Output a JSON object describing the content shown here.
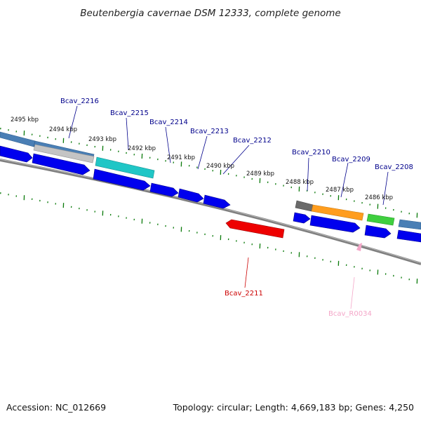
{
  "title": "Beutenbergia cavernae DSM 12333, complete genome",
  "footer": {
    "accession": "Accession: NC_012669",
    "summary": "Topology: circular; Length: 4,669,183 bp; Genes: 4,250"
  },
  "ruler_labels": [
    "2495 kbp",
    "2494 kbp",
    "2493 kbp",
    "2492 kbp",
    "2491 kbp",
    "2490 kbp",
    "2489 kbp",
    "2488 kbp",
    "2487 kbp",
    "2486 kbp"
  ],
  "gene_labels": {
    "top": [
      "Bcav_2216",
      "Bcav_2215",
      "Bcav_2214",
      "Bcav_2213",
      "Bcav_2212",
      "Bcav_2210",
      "Bcav_2209",
      "Bcav_2208"
    ],
    "bottom": [
      "Bcav_2211",
      "Bcav_R0034"
    ]
  },
  "colors": {
    "top_label": "#00008b",
    "bcav_2211": "#cc0000",
    "bcav_r0034": "#f4a6c8",
    "ruler": "#0a7a0a",
    "cds": "#0000ee",
    "backbone": "#808080",
    "blue_gene": "#4a7fb5",
    "gray_gene": "#bdbdbd",
    "cyan_gene": "#20c6c6",
    "dark_gray_gene": "#6a6a6a",
    "orange_gene": "#ff9d1e",
    "green_gene": "#3fcf3f",
    "red_gene": "#ee0000"
  }
}
